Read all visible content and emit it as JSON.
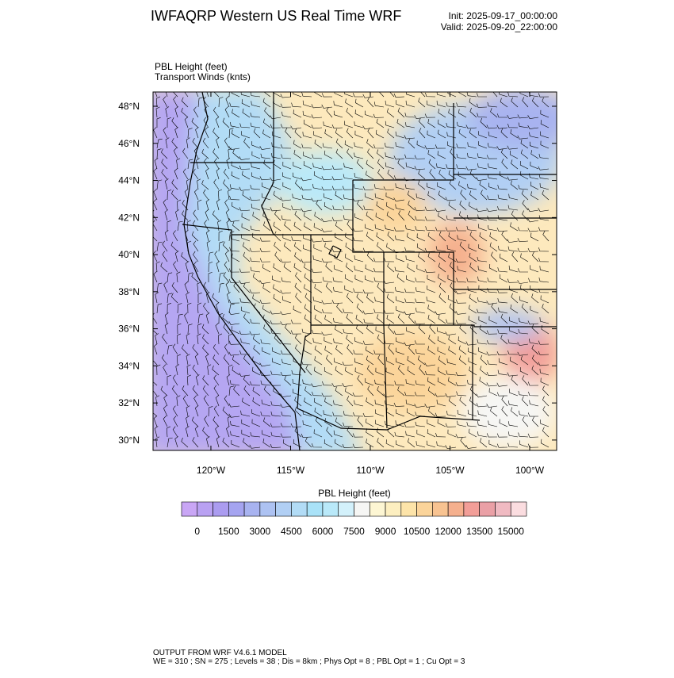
{
  "header": {
    "title": "IWFAQRP Western US Real Time WRF",
    "init": "Init: 2025-09-17_00:00:00",
    "valid": "Valid: 2025-09-20_22:00:00"
  },
  "map": {
    "field_label": "PBL Height   (feet)",
    "wind_label": "Transport Winds   (knts)",
    "xlim": [
      -123.63,
      -98.31
    ],
    "ylim": [
      29.44,
      48.77
    ],
    "xticks": [
      {
        "value": -120,
        "label": "120°W"
      },
      {
        "value": -115,
        "label": "115°W"
      },
      {
        "value": -110,
        "label": "110°W"
      },
      {
        "value": -105,
        "label": "105°W"
      },
      {
        "value": -100,
        "label": "100°W"
      }
    ],
    "yticks": [
      {
        "value": 30,
        "label": "30°N"
      },
      {
        "value": 32,
        "label": "32°N"
      },
      {
        "value": 34,
        "label": "34°N"
      },
      {
        "value": 36,
        "label": "36°N"
      },
      {
        "value": 38,
        "label": "38°N"
      },
      {
        "value": 40,
        "label": "40°N"
      },
      {
        "value": 42,
        "label": "42°N"
      },
      {
        "value": 44,
        "label": "44°N"
      },
      {
        "value": 46,
        "label": "46°N"
      },
      {
        "value": 48,
        "label": "48°N"
      }
    ]
  },
  "colorbar": {
    "title": "PBL Height  (feet)",
    "labels": [
      0,
      1500,
      3000,
      4500,
      6000,
      7500,
      9000,
      10500,
      12000,
      13500,
      15000
    ],
    "colors": [
      "#c9a6f5",
      "#b9a1f2",
      "#ab9cf0",
      "#a5a4f0",
      "#a8b3f0",
      "#adc2f2",
      "#b1cff4",
      "#b2dcf6",
      "#a9e2f8",
      "#b9e9f9",
      "#d3f1fb",
      "#f6f6f4",
      "#fdf6d3",
      "#fdefc0",
      "#fde4a9",
      "#fbd49a",
      "#f8c391",
      "#f5b08e",
      "#f29e98",
      "#eaa0a6",
      "#f0bac2",
      "#fbdde0"
    ]
  },
  "footer": {
    "line1": "OUTPUT FROM WRF V4.6.1 MODEL",
    "line2": "WE = 310 ; SN = 275 ; Levels = 38 ; Dis = 8km ; Phys Opt = 8 ; PBL Opt = 1 ; Cu Opt = 3"
  }
}
